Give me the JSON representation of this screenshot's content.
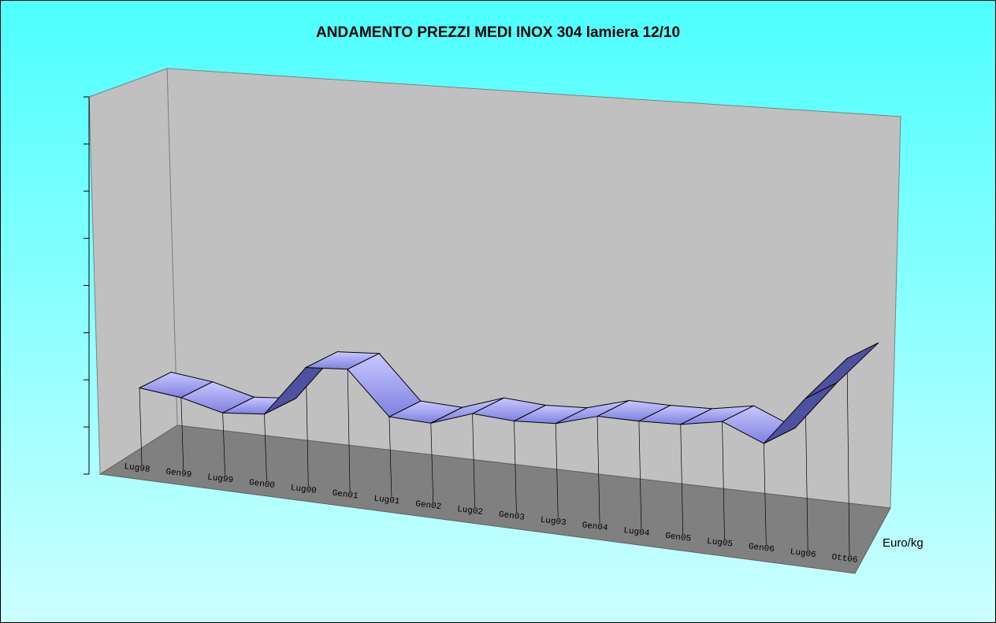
{
  "chart_data": {
    "type": "line",
    "title": "ANDAMENTO PREZZI MEDI INOX 304 lamiera 12/10",
    "categories": [
      "Lug98",
      "Gen99",
      "Lug99",
      "Gen00",
      "Lug00",
      "Gen01",
      "Lug01",
      "Gen02",
      "Lug02",
      "Gen03",
      "Lug03",
      "Gen04",
      "Lug04",
      "Gen05",
      "Lug05",
      "Gen06",
      "Lug06",
      "Ott06"
    ],
    "series": [
      {
        "name": "Euro/kg",
        "color": "#9999ff",
        "values": [
          3.0,
          2.83,
          2.44,
          2.6,
          4.63,
          4.77,
          3.12,
          3.08,
          3.66,
          3.58,
          3.69,
          4.18,
          4.2,
          4.28,
          4.6,
          3.95,
          5.92,
          7.69
        ]
      }
    ],
    "ylim": [
      0,
      8
    ],
    "yticks": [
      0,
      1,
      2,
      3,
      4,
      5,
      6,
      7,
      8
    ]
  }
}
